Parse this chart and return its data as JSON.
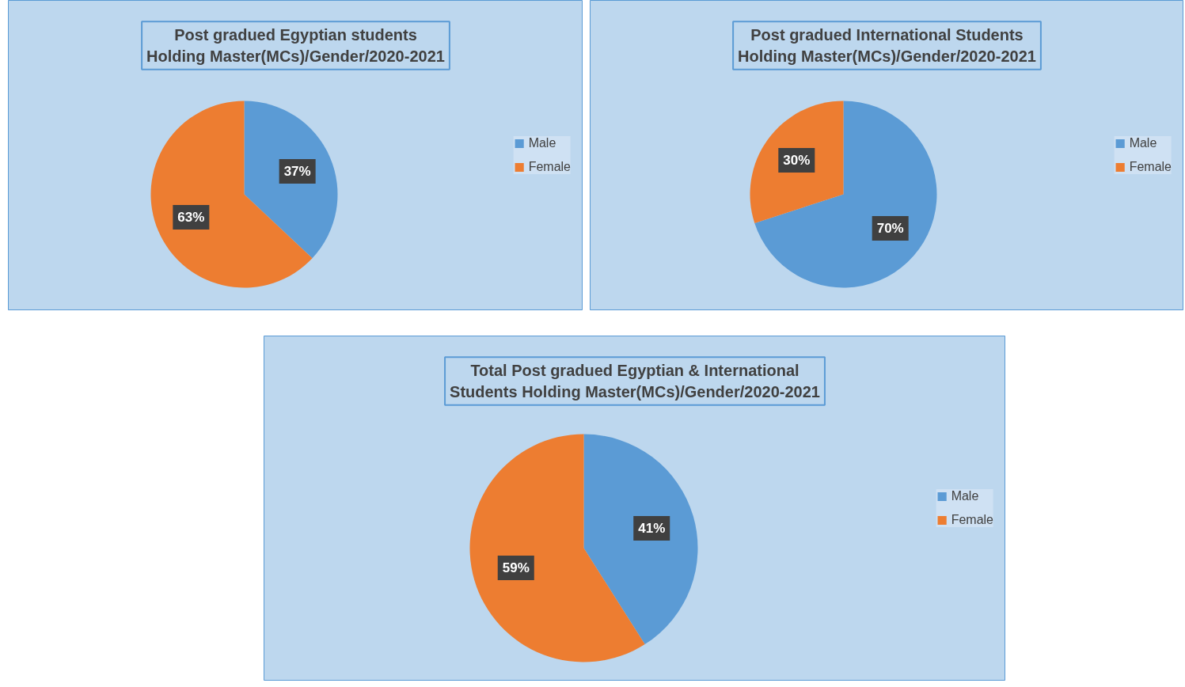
{
  "chart_data": [
    {
      "type": "pie",
      "title": "Post gradued Egyptian students Holding Master(MCs)/Gender/2020-2021",
      "categories": [
        "Male",
        "Female"
      ],
      "values": [
        37,
        63
      ],
      "value_labels": [
        "37%",
        "63%"
      ],
      "colors": [
        "#5b9bd5",
        "#ed7d31"
      ],
      "legend": "right"
    },
    {
      "type": "pie",
      "title": "Post gradued International Students Holding Master(MCs)/Gender/2020-2021",
      "categories": [
        "Male",
        "Female"
      ],
      "values": [
        70,
        30
      ],
      "value_labels": [
        "70%",
        "30%"
      ],
      "colors": [
        "#5b9bd5",
        "#ed7d31"
      ],
      "legend": "right"
    },
    {
      "type": "pie",
      "title": "Total Post gradued Egyptian & International Students Holding Master(MCs)/Gender/2020-2021",
      "categories": [
        "Male",
        "Female"
      ],
      "values": [
        41,
        59
      ],
      "value_labels": [
        "41%",
        "59%"
      ],
      "colors": [
        "#5b9bd5",
        "#ed7d31"
      ],
      "legend": "right"
    }
  ]
}
